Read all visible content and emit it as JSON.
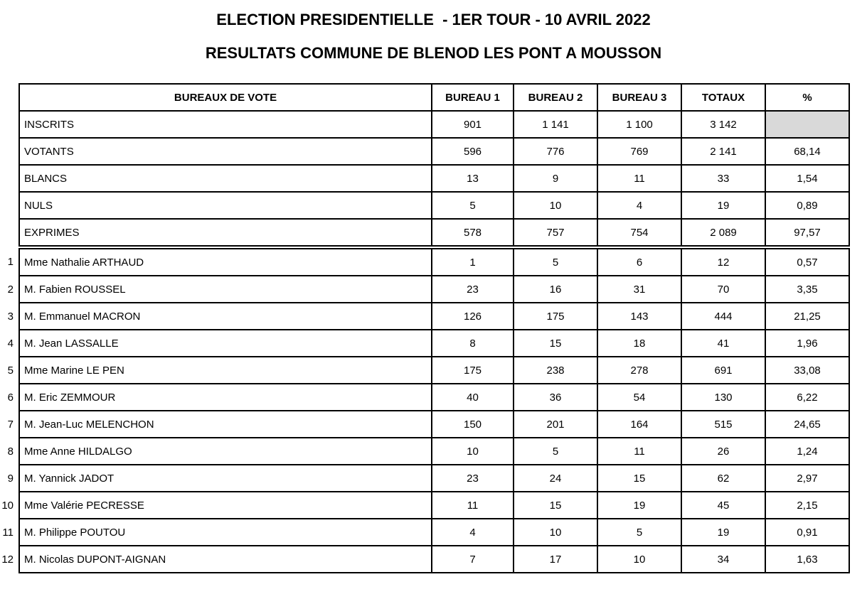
{
  "page": {
    "title": "ELECTION PRESIDENTIELLE  - 1ER TOUR - 10 AVRIL 2022",
    "subtitle": "RESULTATS COMMUNE DE BLENOD LES PONT A MOUSSON"
  },
  "table": {
    "columns": [
      "BUREAUX DE VOTE",
      "BUREAU 1",
      "BUREAU 2",
      "BUREAU 3",
      "TOTAUX",
      "%"
    ],
    "rows": [
      {
        "num": "",
        "label": "INSCRITS",
        "values": [
          "901",
          "1 141",
          "1 100",
          "3 142",
          ""
        ]
      },
      {
        "num": "",
        "label": "VOTANTS",
        "values": [
          "596",
          "776",
          "769",
          "2 141",
          "68,14"
        ]
      },
      {
        "num": "",
        "label": "BLANCS",
        "values": [
          "13",
          "9",
          "11",
          "33",
          "1,54"
        ]
      },
      {
        "num": "",
        "label": "NULS",
        "values": [
          "5",
          "10",
          "4",
          "19",
          "0,89"
        ]
      },
      {
        "num": "",
        "label": "EXPRIMES",
        "values": [
          "578",
          "757",
          "754",
          "2 089",
          "97,57"
        ]
      },
      {
        "num": "1",
        "label": "Mme Nathalie ARTHAUD",
        "values": [
          "1",
          "5",
          "6",
          "12",
          "0,57"
        ]
      },
      {
        "num": "2",
        "label": "M. Fabien ROUSSEL",
        "values": [
          "23",
          "16",
          "31",
          "70",
          "3,35"
        ]
      },
      {
        "num": "3",
        "label": "M. Emmanuel MACRON",
        "values": [
          "126",
          "175",
          "143",
          "444",
          "21,25"
        ]
      },
      {
        "num": "4",
        "label": "M. Jean LASSALLE",
        "values": [
          "8",
          "15",
          "18",
          "41",
          "1,96"
        ]
      },
      {
        "num": "5",
        "label": "Mme Marine LE PEN",
        "values": [
          "175",
          "238",
          "278",
          "691",
          "33,08"
        ]
      },
      {
        "num": "6",
        "label": "M. Eric ZEMMOUR",
        "values": [
          "40",
          "36",
          "54",
          "130",
          "6,22"
        ]
      },
      {
        "num": "7",
        "label": "M. Jean-Luc MELENCHON",
        "values": [
          "150",
          "201",
          "164",
          "515",
          "24,65"
        ]
      },
      {
        "num": "8",
        "label": "Mme Anne HILDALGO",
        "values": [
          "10",
          "5",
          "11",
          "26",
          "1,24"
        ]
      },
      {
        "num": "9",
        "label": "M. Yannick JADOT",
        "values": [
          "23",
          "24",
          "15",
          "62",
          "2,97"
        ]
      },
      {
        "num": "10",
        "label": "Mme Valérie PECRESSE",
        "values": [
          "11",
          "15",
          "19",
          "45",
          "2,15"
        ]
      },
      {
        "num": "11",
        "label": "M. Philippe POUTOU",
        "values": [
          "4",
          "10",
          "5",
          "19",
          "0,91"
        ]
      },
      {
        "num": "12",
        "label": "M. Nicolas DUPONT-AIGNAN",
        "values": [
          "7",
          "17",
          "10",
          "34",
          "1,63"
        ]
      }
    ],
    "colors": {
      "shaded_cell": "#d9d9d9",
      "border": "#000000"
    }
  }
}
